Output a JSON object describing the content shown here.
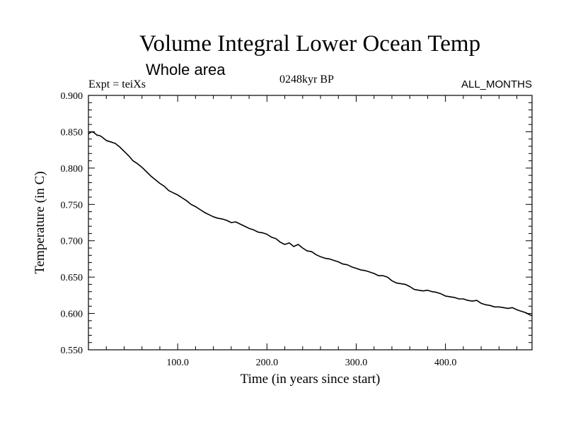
{
  "page": {
    "title": "Volume Integral Lower Ocean Temp",
    "subtitle": "Whole area",
    "expt_label": "Expt = teiXs",
    "period_label": "0248kyr BP",
    "months_label": "ALL_MONTHS"
  },
  "chart_data": {
    "type": "line",
    "title": "Volume Integral Lower Ocean Temp",
    "subtitle": "Whole area",
    "xlabel": "Time (in years since start)",
    "ylabel": "Temperature (in C)",
    "xlim": [
      0,
      497
    ],
    "ylim": [
      0.55,
      0.9
    ],
    "xticks": [
      100,
      200,
      300,
      400
    ],
    "xtick_labels": [
      "100.0",
      "200.0",
      "300.0",
      "400.0"
    ],
    "yticks": [
      0.55,
      0.6,
      0.65,
      0.7,
      0.75,
      0.8,
      0.85,
      0.9
    ],
    "ytick_labels": [
      "0.550",
      "0.600",
      "0.650",
      "0.700",
      "0.750",
      "0.800",
      "0.850",
      "0.900"
    ],
    "grid": false,
    "series": [
      {
        "color": "#000000",
        "x": [
          0,
          2,
          4,
          6,
          8,
          10,
          12,
          15,
          18,
          20,
          25,
          30,
          35,
          40,
          45,
          50,
          55,
          60,
          65,
          70,
          75,
          80,
          85,
          90,
          95,
          100,
          105,
          110,
          115,
          120,
          125,
          130,
          135,
          140,
          145,
          150,
          155,
          160,
          165,
          170,
          175,
          180,
          185,
          190,
          195,
          200,
          205,
          210,
          215,
          220,
          225,
          230,
          235,
          240,
          245,
          250,
          255,
          260,
          265,
          270,
          275,
          280,
          285,
          290,
          295,
          300,
          305,
          310,
          315,
          320,
          325,
          330,
          335,
          340,
          345,
          350,
          355,
          360,
          365,
          370,
          375,
          380,
          385,
          390,
          395,
          400,
          405,
          410,
          415,
          420,
          425,
          430,
          435,
          440,
          445,
          450,
          455,
          460,
          465,
          470,
          475,
          480,
          485,
          490,
          493,
          497
        ],
        "y": [
          0.847,
          0.849,
          0.85,
          0.849,
          0.847,
          0.845,
          0.845,
          0.843,
          0.84,
          0.838,
          0.836,
          0.834,
          0.829,
          0.823,
          0.817,
          0.81,
          0.806,
          0.801,
          0.795,
          0.789,
          0.784,
          0.779,
          0.775,
          0.769,
          0.766,
          0.763,
          0.759,
          0.755,
          0.75,
          0.747,
          0.743,
          0.739,
          0.736,
          0.733,
          0.731,
          0.73,
          0.728,
          0.725,
          0.726,
          0.723,
          0.72,
          0.717,
          0.715,
          0.712,
          0.711,
          0.709,
          0.705,
          0.703,
          0.698,
          0.695,
          0.697,
          0.692,
          0.695,
          0.69,
          0.686,
          0.685,
          0.681,
          0.678,
          0.676,
          0.675,
          0.673,
          0.671,
          0.668,
          0.667,
          0.664,
          0.662,
          0.66,
          0.659,
          0.657,
          0.655,
          0.652,
          0.652,
          0.65,
          0.645,
          0.642,
          0.641,
          0.64,
          0.637,
          0.633,
          0.632,
          0.631,
          0.632,
          0.63,
          0.629,
          0.627,
          0.624,
          0.623,
          0.622,
          0.62,
          0.62,
          0.618,
          0.617,
          0.618,
          0.614,
          0.612,
          0.611,
          0.609,
          0.609,
          0.608,
          0.607,
          0.608,
          0.605,
          0.603,
          0.601,
          0.599,
          0.597
        ]
      }
    ]
  }
}
